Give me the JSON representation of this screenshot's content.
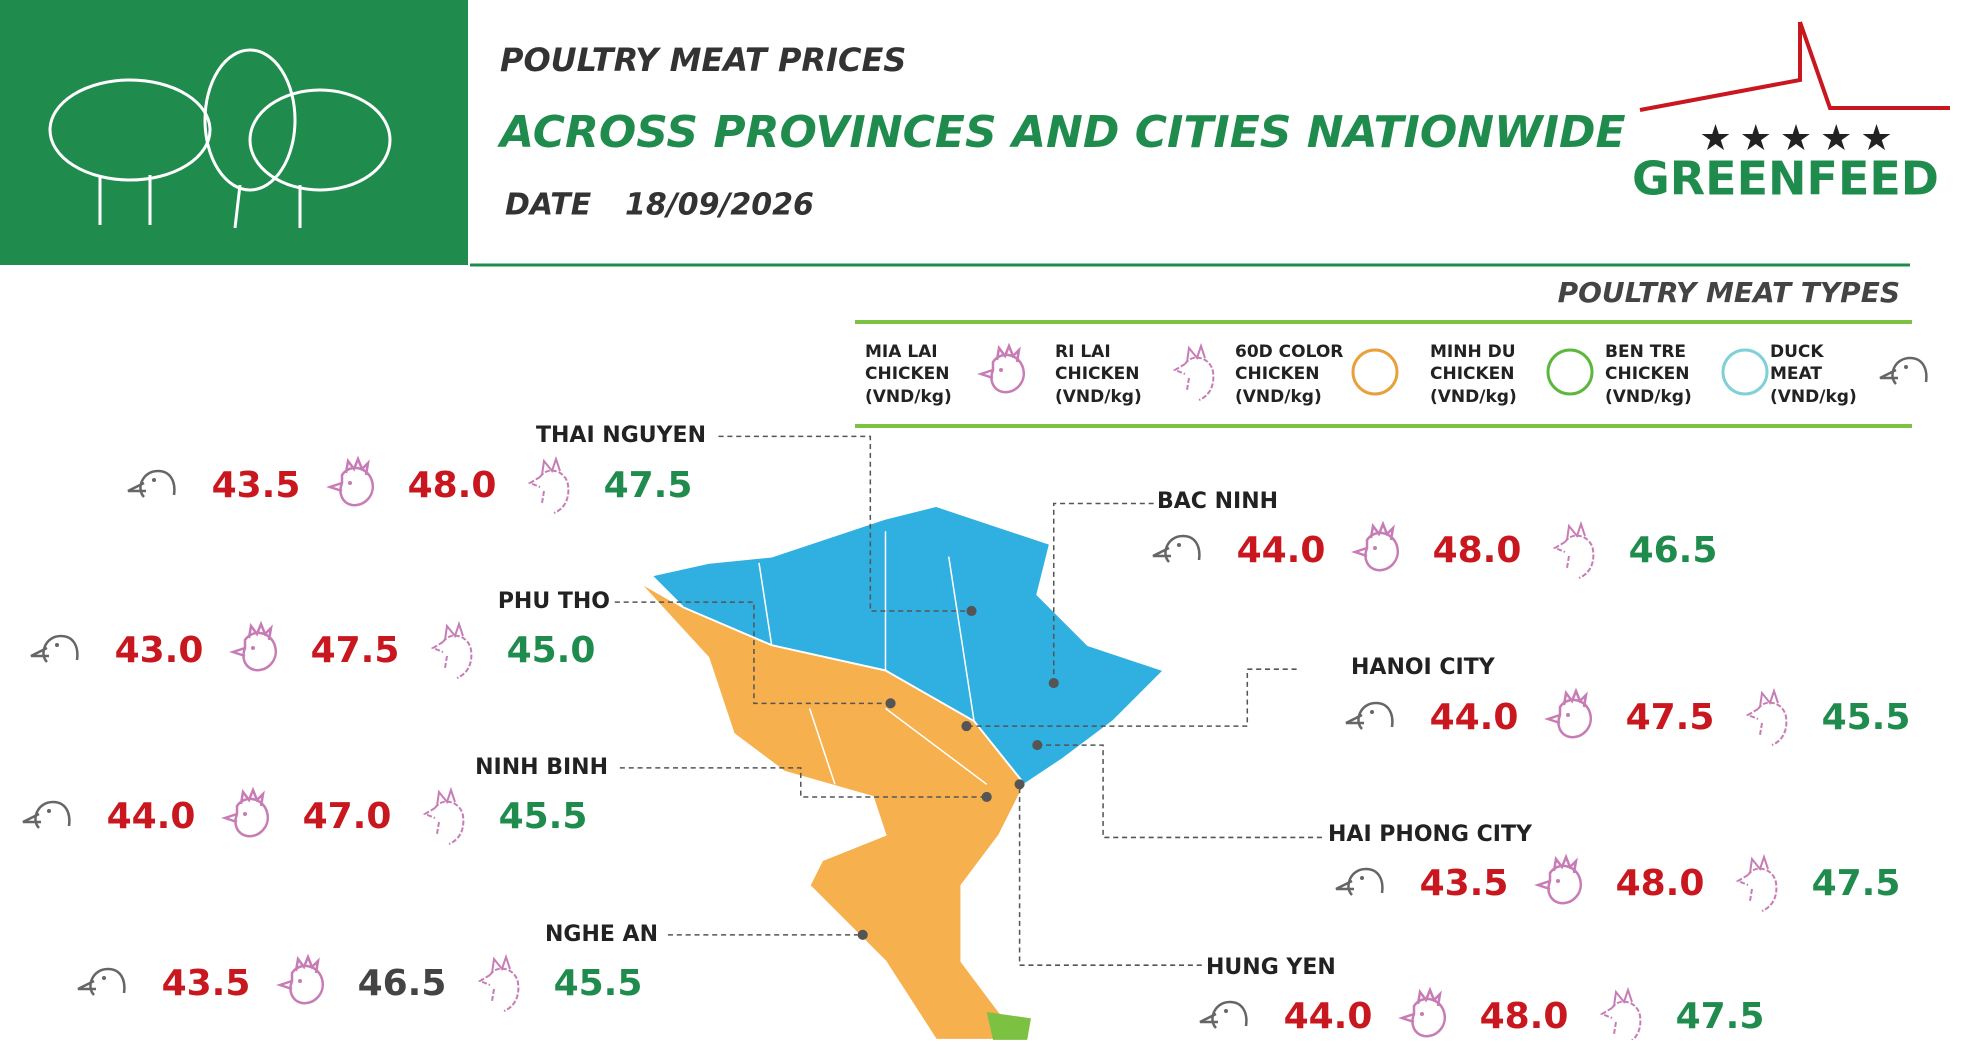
{
  "header": {
    "title": "POULTRY MEAT PRICES",
    "subtitle": "ACROSS PROVINCES AND CITIES NATIONWIDE",
    "date_label": "DATE",
    "date": "18/09/2026",
    "brand": "GREENFEED"
  },
  "legend": {
    "title": "POULTRY MEAT TYPES",
    "unit": "(VND/kg)",
    "items": [
      {
        "lines": [
          "MIA LAI",
          "CHICKEN"
        ]
      },
      {
        "lines": [
          "RI LAI",
          "CHICKEN"
        ]
      },
      {
        "lines": [
          "60D COLOR",
          "CHICKEN"
        ]
      },
      {
        "lines": [
          "MINH DU",
          "CHICKEN"
        ]
      },
      {
        "lines": [
          "BEN TRE",
          "CHICKEN"
        ]
      },
      {
        "lines": [
          "DUCK",
          "MEAT"
        ]
      }
    ]
  },
  "regions": [
    {
      "name": "THAI NGUYEN",
      "prices": [
        "43.5",
        "48.0",
        "47.5"
      ],
      "colors": [
        "#c8171e",
        "#c8171e",
        "#1f8c4e"
      ]
    },
    {
      "name": "BAC NINH",
      "prices": [
        "44.0",
        "48.0",
        "46.5"
      ],
      "colors": [
        "#c8171e",
        "#c8171e",
        "#1f8c4e"
      ]
    },
    {
      "name": "PHU THO",
      "prices": [
        "43.0",
        "47.5",
        "45.0"
      ],
      "colors": [
        "#c8171e",
        "#c8171e",
        "#1f8c4e"
      ]
    },
    {
      "name": "HANOI CITY",
      "prices": [
        "44.0",
        "47.5",
        "45.5"
      ],
      "colors": [
        "#c8171e",
        "#c8171e",
        "#1f8c4e"
      ]
    },
    {
      "name": "NINH BINH",
      "prices": [
        "44.0",
        "47.0",
        "45.5"
      ],
      "colors": [
        "#c8171e",
        "#c8171e",
        "#1f8c4e"
      ]
    },
    {
      "name": "HAI PHONG CITY",
      "prices": [
        "43.5",
        "48.0",
        "47.5"
      ],
      "colors": [
        "#c8171e",
        "#c8171e",
        "#1f8c4e"
      ]
    },
    {
      "name": "NGHE AN",
      "prices": [
        "43.5",
        "46.5",
        "45.5"
      ],
      "colors": [
        "#c8171e",
        "#444444",
        "#1f8c4e"
      ]
    },
    {
      "name": "HUNG YEN",
      "prices": [
        "44.0",
        "48.0",
        "47.5"
      ],
      "colors": [
        "#c8171e",
        "#c8171e",
        "#1f8c4e"
      ]
    }
  ]
}
